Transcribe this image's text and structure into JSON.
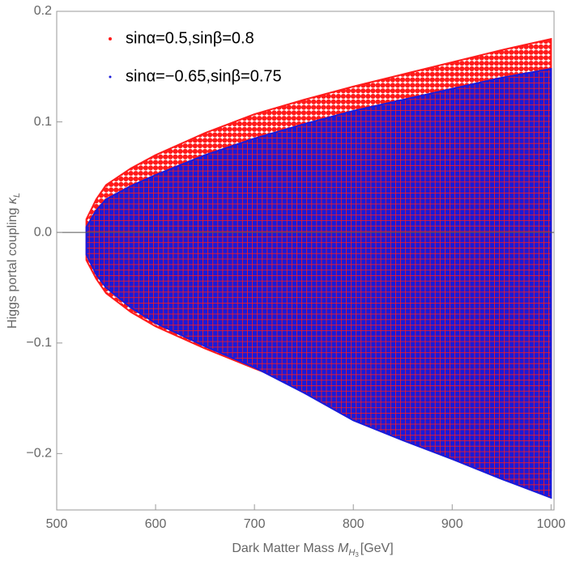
{
  "chart_data": {
    "type": "range-scatter",
    "xlabel": {
      "text": "Dark Matter Mass",
      "symbol": "M",
      "sub": "H",
      "subsub": "3",
      "unit": "[GeV]"
    },
    "ylabel": {
      "text": "Higgs portal coupling",
      "symbol": "κ",
      "sub": "L"
    },
    "xlim": [
      500,
      1003
    ],
    "ylim": [
      -0.251,
      0.2
    ],
    "xticks": [
      500,
      600,
      700,
      800,
      900,
      1000
    ],
    "yticks": [
      {
        "value": -0.2,
        "label": "−0.2"
      },
      {
        "value": -0.1,
        "label": "−0.1"
      },
      {
        "value": 0,
        "label": "0.0"
      },
      0.1,
      0.2
    ],
    "legend": "upper left",
    "series": [
      {
        "name": "sinα=0.5,sinβ=0.8",
        "color": "#ff1a1a",
        "x": [
          530,
          540,
          550,
          575,
          600,
          650,
          700,
          750,
          800,
          850,
          900,
          950,
          1000
        ],
        "upper": [
          0.012,
          0.03,
          0.043,
          0.058,
          0.07,
          0.09,
          0.107,
          0.12,
          0.132,
          0.143,
          0.154,
          0.165,
          0.175
        ],
        "lower": [
          -0.025,
          -0.042,
          -0.055,
          -0.072,
          -0.085,
          -0.105,
          -0.123,
          -0.14,
          -0.157,
          -0.172,
          -0.188,
          -0.202,
          -0.215
        ]
      },
      {
        "name": "sinα=−0.65,sinβ=0.75",
        "color": "#1a1ad9",
        "x": [
          530,
          540,
          550,
          575,
          600,
          650,
          700,
          750,
          800,
          850,
          900,
          950,
          1000
        ],
        "upper": [
          0.005,
          0.02,
          0.03,
          0.042,
          0.052,
          0.07,
          0.085,
          0.098,
          0.11,
          0.12,
          0.13,
          0.14,
          0.148
        ],
        "lower": [
          -0.02,
          -0.038,
          -0.05,
          -0.068,
          -0.082,
          -0.103,
          -0.122,
          -0.145,
          -0.17,
          -0.188,
          -0.205,
          -0.223,
          -0.24
        ]
      }
    ]
  }
}
